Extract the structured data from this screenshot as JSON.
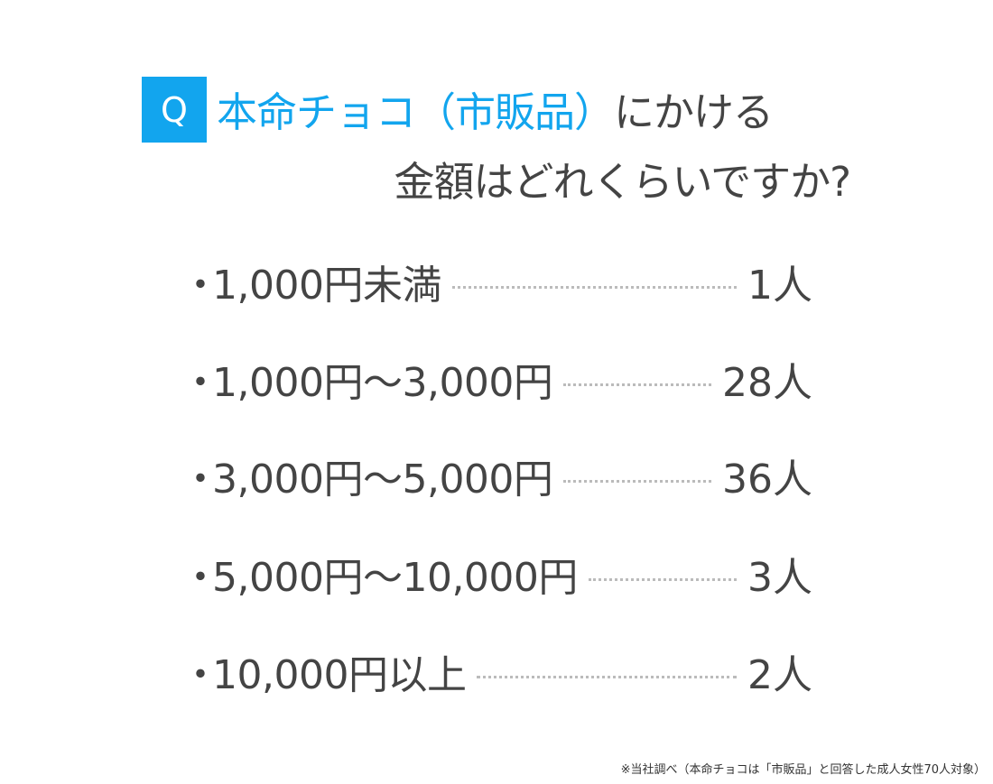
{
  "question": {
    "badge": "Q",
    "highlight": "本命チョコ（市販品）",
    "line1_rest": "にかける",
    "line2": "金額はどれくらいですか?",
    "accent_color": "#12a5ee"
  },
  "items": [
    {
      "bullet": "・",
      "label": "1,000円未満",
      "count": "1人"
    },
    {
      "bullet": "・",
      "label": "1,000円～3,000円",
      "count": "28人"
    },
    {
      "bullet": "・",
      "label": "3,000円～5,000円",
      "count": "36人"
    },
    {
      "bullet": "・",
      "label": "5,000円～10,000円",
      "count": "3人"
    },
    {
      "bullet": "・",
      "label": "10,000円以上",
      "count": "2人"
    }
  ],
  "footnote": "※当社調べ（本命チョコは「市販品」と回答した成人女性70人対象）"
}
